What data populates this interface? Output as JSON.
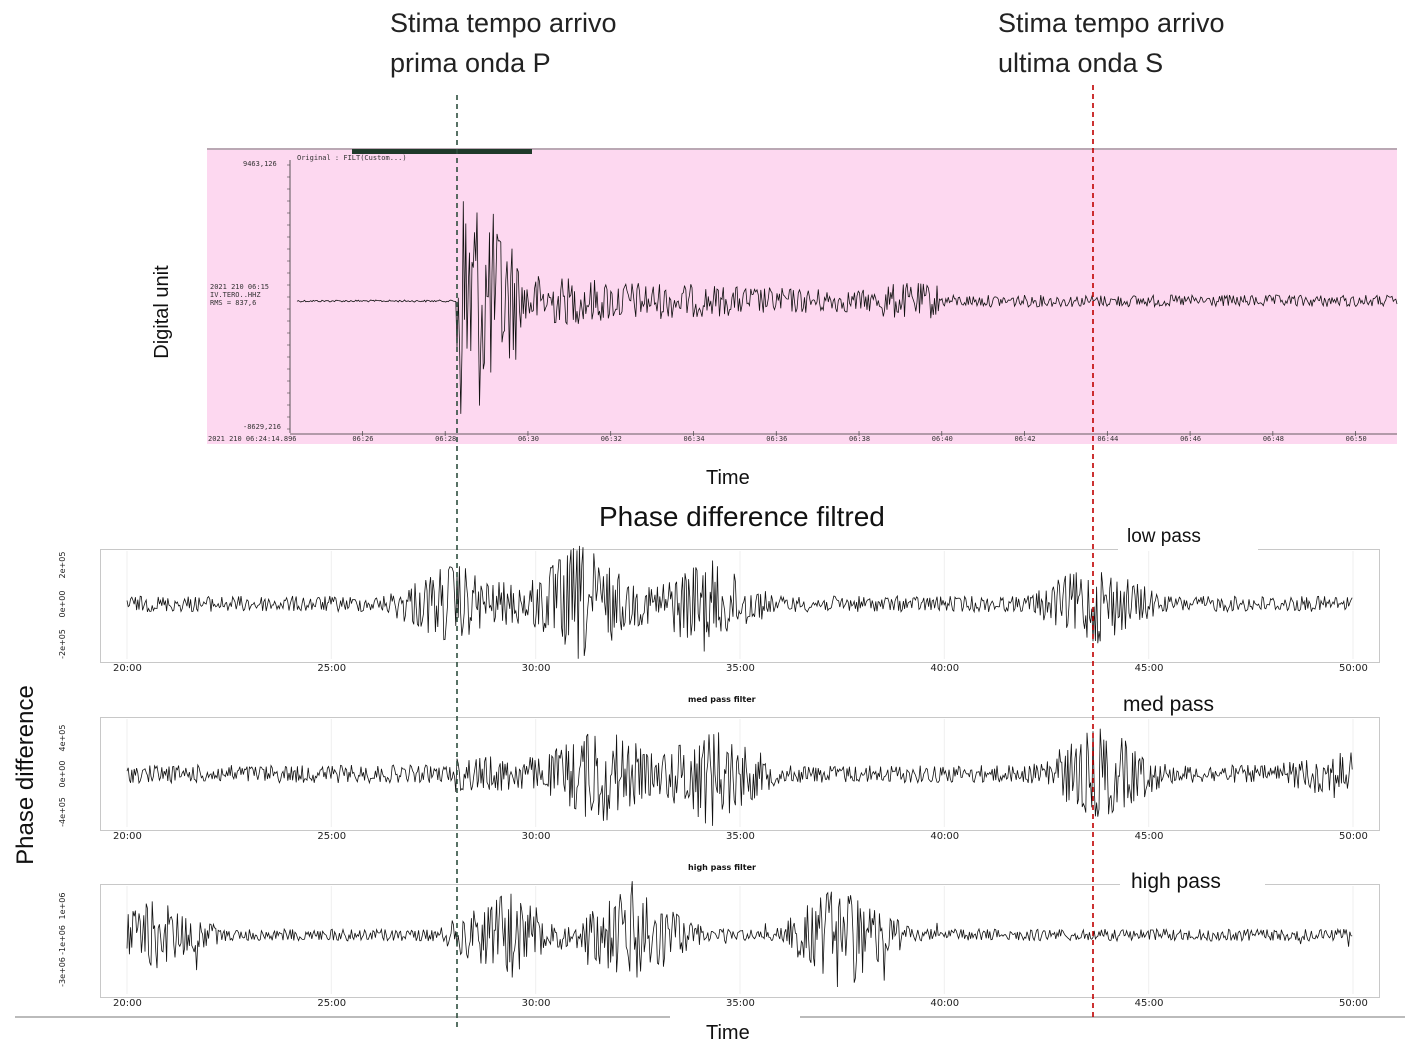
{
  "annotations": {
    "p_wave_line1": "Stima tempo arrivo",
    "p_wave_line2": "prima onda P",
    "s_wave_line1": "Stima tempo arrivo",
    "s_wave_line2": "ultima onda  S",
    "p_line_color": "#2f4f3f",
    "s_line_color": "#c00000"
  },
  "seismogram": {
    "ylabel": "Digital unit",
    "xlabel": "Time",
    "header_text": "Original : FILT(Custom...)",
    "y_max_label": "9463,126",
    "y_min_label": "-8629,216",
    "station_line1": "2021 210 06:15",
    "station_line2": "IV.TERO..HHZ",
    "station_line3": "RMS = 837,6",
    "start_label": "2021 210 06:24:14.896",
    "background": "#fdd8f0"
  },
  "phase_section": {
    "title": "Phase difference filtred",
    "ylabel": "Phase difference",
    "xlabel": "Time"
  },
  "chart_data": [
    {
      "type": "line",
      "series": [
        {
          "name": "IV.TERO..HHZ"
        }
      ],
      "x_ticks": [
        "06:26",
        "06:28",
        "06:30",
        "06:32",
        "06:34",
        "06:36",
        "06:38",
        "06:40",
        "06:42",
        "06:44",
        "06:46",
        "06:48",
        "06:50"
      ],
      "ylim": [
        -8629.216,
        9463.126
      ]
    },
    {
      "type": "line",
      "title": "",
      "label": "low pass",
      "x_ticks": [
        "20:00",
        "25:00",
        "30:00",
        "35:00",
        "40:00",
        "45:00",
        "50:00"
      ],
      "y_ticks": [
        "2e+05",
        "0e+00",
        "-2e+05"
      ],
      "y_tick_values": [
        200000,
        0,
        -200000
      ]
    },
    {
      "type": "line",
      "title": "med pass filter",
      "label": "med pass",
      "x_ticks": [
        "20:00",
        "25:00",
        "30:00",
        "35:00",
        "40:00",
        "45:00",
        "50:00"
      ],
      "y_ticks": [
        "4e+05",
        "0e+00",
        "-4e+05"
      ],
      "y_tick_values": [
        400000,
        0,
        -400000
      ]
    },
    {
      "type": "line",
      "title": "high pass filter",
      "label": "high pass",
      "x_ticks": [
        "20:00",
        "25:00",
        "30:00",
        "35:00",
        "40:00",
        "45:00",
        "50:00"
      ],
      "y_ticks": [
        "1e+06",
        "-1e+06",
        "-3e+06"
      ],
      "y_tick_values": [
        1000000,
        -1000000,
        -3000000
      ]
    }
  ]
}
